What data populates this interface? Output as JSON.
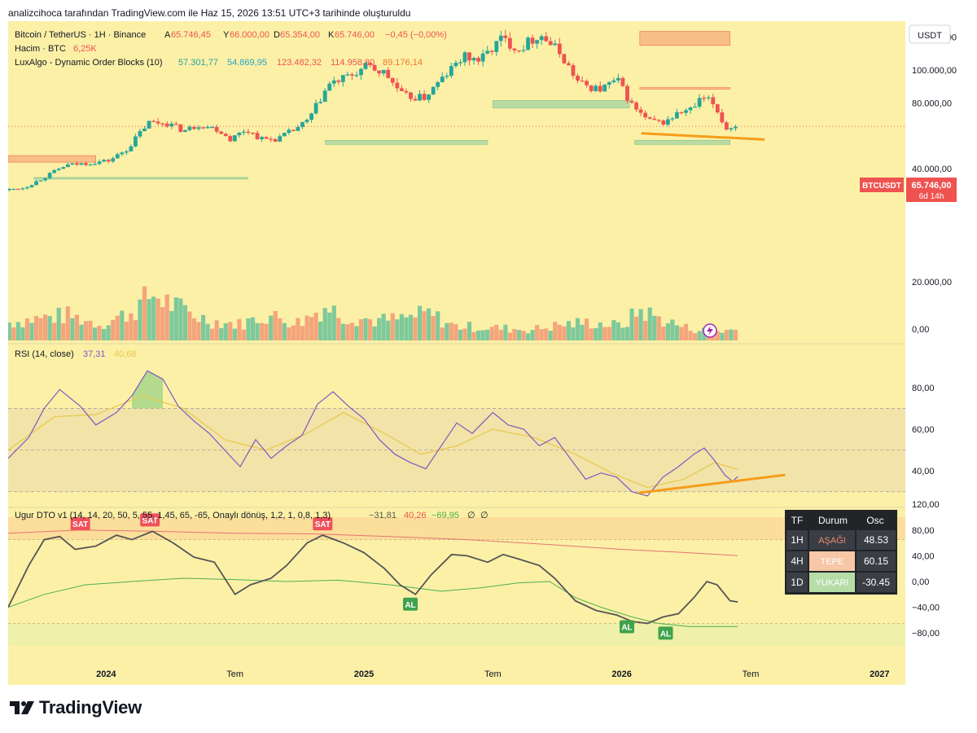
{
  "caption": "analizcihoca tarafından TradingView.com ile Haz 15, 2026 13:51 UTC+3 tarihinde oluşturuldu",
  "brand": "TradingView",
  "colors": {
    "bg": "#fcf0a7",
    "up": "#26a69a",
    "down": "#ef5350",
    "vol_up": "#7fc99a",
    "vol_down": "#f4a57c",
    "rsi": "#7e57c2",
    "rsi_ma": "#e8c84a",
    "trend": "#f59d1c",
    "dto_fast": "#555555",
    "dto_slow": "#4caf50"
  },
  "chart_data": [
    {
      "type": "candlestick",
      "title": "Bitcoin / TetherUS · 1H · Binance",
      "ohlc": {
        "A": "65.746,45",
        "Y": "66.000,00",
        "D": "65.354,00",
        "K": "65.746,00"
      },
      "change": "−0,45 (−0,00%)",
      "volume_label": "Hacim · BTC",
      "volume_value": "6,25K",
      "indicator_label": "LuxAlgo - Dynamic Order Blocks (10)",
      "indicator_values": [
        "57.301,77",
        "54.869,95",
        "123.482,32",
        "114.958,80",
        "89.176,14"
      ],
      "currency": "USDT",
      "symbol_tag": "BTCUSDT",
      "last_price": "65.746,00",
      "countdown": "6d 14h",
      "last_value": 65746,
      "y_ticks": [
        120000,
        100000,
        80000,
        40000,
        20000,
        0
      ],
      "y_tick_labels": [
        "120.000,00",
        "100.000,00",
        "80.000,00",
        "40.000,00",
        "20.000,00",
        "0,00"
      ],
      "x_ticks": [
        {
          "t": 2024.0,
          "label": "2024"
        },
        {
          "t": 2024.5,
          "label": "Tem"
        },
        {
          "t": 2025.0,
          "label": "2025"
        },
        {
          "t": 2025.5,
          "label": "Tem"
        },
        {
          "t": 2026.0,
          "label": "2026"
        },
        {
          "t": 2026.5,
          "label": "Tem"
        },
        {
          "t": 2027.0,
          "label": "2027"
        }
      ],
      "x_range": [
        2023.62,
        2027.1
      ],
      "price_path": [
        [
          2023.62,
          27000
        ],
        [
          2023.7,
          28500
        ],
        [
          2023.78,
          35000
        ],
        [
          2023.86,
          42000
        ],
        [
          2023.95,
          43500
        ],
        [
          2024.03,
          45000
        ],
        [
          2024.1,
          52000
        ],
        [
          2024.18,
          68000
        ],
        [
          2024.25,
          68000
        ],
        [
          2024.32,
          63000
        ],
        [
          2024.38,
          67000
        ],
        [
          2024.45,
          64000
        ],
        [
          2024.5,
          58000
        ],
        [
          2024.56,
          64000
        ],
        [
          2024.62,
          58000
        ],
        [
          2024.68,
          58000
        ],
        [
          2024.74,
          63000
        ],
        [
          2024.8,
          69000
        ],
        [
          2024.88,
          91000
        ],
        [
          2024.96,
          96000
        ],
        [
          2025.03,
          102000
        ],
        [
          2025.1,
          98000
        ],
        [
          2025.17,
          84000
        ],
        [
          2025.25,
          83000
        ],
        [
          2025.33,
          96000
        ],
        [
          2025.4,
          108000
        ],
        [
          2025.47,
          106000
        ],
        [
          2025.55,
          119000
        ],
        [
          2025.62,
          113000
        ],
        [
          2025.7,
          122000
        ],
        [
          2025.78,
          110000
        ],
        [
          2025.85,
          92000
        ],
        [
          2025.93,
          88000
        ],
        [
          2026.0,
          94000
        ],
        [
          2026.06,
          78000
        ],
        [
          2026.12,
          69000
        ],
        [
          2026.18,
          68000
        ],
        [
          2026.24,
          74000
        ],
        [
          2026.29,
          76000
        ],
        [
          2026.33,
          83000
        ],
        [
          2026.37,
          80000
        ],
        [
          2026.4,
          72000
        ],
        [
          2026.42,
          64000
        ],
        [
          2026.45,
          65746
        ]
      ],
      "volume_path": [
        [
          2023.62,
          10000
        ],
        [
          2023.72,
          12000
        ],
        [
          2023.85,
          14000
        ],
        [
          2023.98,
          9000
        ],
        [
          2024.1,
          16000
        ],
        [
          2024.18,
          26000
        ],
        [
          2024.28,
          18000
        ],
        [
          2024.4,
          11000
        ],
        [
          2024.52,
          9000
        ],
        [
          2024.62,
          14000
        ],
        [
          2024.75,
          10000
        ],
        [
          2024.85,
          19000
        ],
        [
          2024.92,
          14000
        ],
        [
          2025.05,
          11000
        ],
        [
          2025.15,
          12000
        ],
        [
          2025.25,
          15000
        ],
        [
          2025.35,
          8000
        ],
        [
          2025.5,
          7000
        ],
        [
          2025.65,
          6000
        ],
        [
          2025.78,
          9000
        ],
        [
          2025.88,
          10000
        ],
        [
          2026.0,
          8000
        ],
        [
          2026.07,
          17000
        ],
        [
          2026.15,
          12000
        ],
        [
          2026.25,
          7000
        ],
        [
          2026.35,
          5000
        ],
        [
          2026.45,
          6000
        ]
      ],
      "order_blocks": [
        {
          "t1": 2023.62,
          "t2": 2023.96,
          "y1": 44000,
          "y2": 48000,
          "kind": "bearish"
        },
        {
          "t1": 2023.72,
          "t2": 2024.55,
          "y1": 34200,
          "y2": 34700,
          "kind": "bullish"
        },
        {
          "t1": 2024.85,
          "t2": 2025.48,
          "y1": 54800,
          "y2": 57300,
          "kind": "bullish"
        },
        {
          "t1": 2025.5,
          "t2": 2026.03,
          "y1": 77000,
          "y2": 81500,
          "kind": "bullish"
        },
        {
          "t1": 2026.05,
          "t2": 2026.42,
          "y1": 54800,
          "y2": 57300,
          "kind": "bullish"
        },
        {
          "t1": 2026.07,
          "t2": 2026.42,
          "y1": 114958,
          "y2": 123482,
          "kind": "bearish"
        },
        {
          "t1": 2026.07,
          "t2": 2026.42,
          "y1": 89000,
          "y2": 89350,
          "kind": "bearish"
        }
      ],
      "trendline": [
        [
          2026.08,
          61500
        ],
        [
          2026.55,
          57800
        ]
      ]
    },
    {
      "type": "line",
      "title": "RSI (14, close)",
      "values_text": [
        "37,31",
        "40,68"
      ],
      "y_ticks": [
        80,
        60,
        40
      ],
      "y_tick_labels": [
        "80,00",
        "60,00",
        "40,00"
      ],
      "band": [
        30,
        70
      ],
      "rsi": [
        [
          2023.62,
          46
        ],
        [
          2023.7,
          56
        ],
        [
          2023.76,
          70
        ],
        [
          2023.82,
          79
        ],
        [
          2023.9,
          71
        ],
        [
          2023.96,
          62
        ],
        [
          2024.04,
          68
        ],
        [
          2024.1,
          76
        ],
        [
          2024.16,
          88
        ],
        [
          2024.22,
          84
        ],
        [
          2024.28,
          71
        ],
        [
          2024.34,
          64
        ],
        [
          2024.4,
          58
        ],
        [
          2024.46,
          50
        ],
        [
          2024.52,
          42
        ],
        [
          2024.58,
          55
        ],
        [
          2024.64,
          46
        ],
        [
          2024.7,
          52
        ],
        [
          2024.76,
          57
        ],
        [
          2024.82,
          72
        ],
        [
          2024.88,
          78
        ],
        [
          2024.94,
          71
        ],
        [
          2025.0,
          65
        ],
        [
          2025.06,
          55
        ],
        [
          2025.12,
          48
        ],
        [
          2025.18,
          44
        ],
        [
          2025.24,
          41
        ],
        [
          2025.3,
          52
        ],
        [
          2025.36,
          63
        ],
        [
          2025.42,
          58
        ],
        [
          2025.5,
          68
        ],
        [
          2025.56,
          62
        ],
        [
          2025.62,
          60
        ],
        [
          2025.68,
          52
        ],
        [
          2025.74,
          56
        ],
        [
          2025.8,
          46
        ],
        [
          2025.86,
          36
        ],
        [
          2025.92,
          39
        ],
        [
          2025.98,
          37
        ],
        [
          2026.04,
          30
        ],
        [
          2026.1,
          28
        ],
        [
          2026.16,
          37
        ],
        [
          2026.22,
          42
        ],
        [
          2026.28,
          48
        ],
        [
          2026.32,
          51
        ],
        [
          2026.36,
          45
        ],
        [
          2026.4,
          38
        ],
        [
          2026.43,
          35
        ],
        [
          2026.45,
          37.31
        ]
      ],
      "rsi_ma": [
        [
          2023.62,
          50
        ],
        [
          2023.8,
          66
        ],
        [
          2023.96,
          67
        ],
        [
          2024.14,
          76
        ],
        [
          2024.3,
          70
        ],
        [
          2024.46,
          55
        ],
        [
          2024.62,
          50
        ],
        [
          2024.78,
          58
        ],
        [
          2024.92,
          68
        ],
        [
          2025.08,
          58
        ],
        [
          2025.22,
          48
        ],
        [
          2025.36,
          52
        ],
        [
          2025.5,
          60
        ],
        [
          2025.66,
          56
        ],
        [
          2025.82,
          48
        ],
        [
          2025.96,
          39
        ],
        [
          2026.1,
          32
        ],
        [
          2026.24,
          36
        ],
        [
          2026.36,
          44
        ],
        [
          2026.45,
          40.68
        ]
      ],
      "trendline": [
        [
          2026.07,
          29.5
        ],
        [
          2026.63,
          38
        ]
      ]
    },
    {
      "type": "line",
      "title": "Ugur DTO v1 (14, 14, 20, 50, 5, 55, 1,45, 65, -65, Onaylı dönüş, 1,2, 1, 0,8, 1,3)",
      "values_text": [
        "−31,81",
        "40,26",
        "−69,95",
        "∅",
        "∅"
      ],
      "y_ticks": [
        120,
        80,
        40,
        0,
        -40,
        -80
      ],
      "y_tick_labels": [
        "120,00",
        "80,00",
        "40,00",
        "0,00",
        "−40,00",
        "−80,00"
      ],
      "upper_zone": [
        65,
        100
      ],
      "lower_zone": [
        -100,
        -65
      ],
      "fast": [
        [
          2023.62,
          -40
        ],
        [
          2023.7,
          25
        ],
        [
          2023.76,
          65
        ],
        [
          2023.82,
          70
        ],
        [
          2023.88,
          50
        ],
        [
          2023.96,
          55
        ],
        [
          2024.04,
          72
        ],
        [
          2024.1,
          65
        ],
        [
          2024.18,
          78
        ],
        [
          2024.26,
          60
        ],
        [
          2024.34,
          38
        ],
        [
          2024.42,
          30
        ],
        [
          2024.5,
          -20
        ],
        [
          2024.56,
          -5
        ],
        [
          2024.64,
          5
        ],
        [
          2024.7,
          25
        ],
        [
          2024.78,
          60
        ],
        [
          2024.84,
          72
        ],
        [
          2024.92,
          60
        ],
        [
          2025.0,
          45
        ],
        [
          2025.08,
          20
        ],
        [
          2025.14,
          -5
        ],
        [
          2025.2,
          -20
        ],
        [
          2025.26,
          10
        ],
        [
          2025.34,
          42
        ],
        [
          2025.4,
          40
        ],
        [
          2025.48,
          30
        ],
        [
          2025.54,
          42
        ],
        [
          2025.6,
          35
        ],
        [
          2025.68,
          25
        ],
        [
          2025.74,
          5
        ],
        [
          2025.82,
          -30
        ],
        [
          2025.9,
          -45
        ],
        [
          2025.98,
          -52
        ],
        [
          2026.04,
          -62
        ],
        [
          2026.1,
          -65
        ],
        [
          2026.16,
          -55
        ],
        [
          2026.22,
          -50
        ],
        [
          2026.28,
          -25
        ],
        [
          2026.33,
          0
        ],
        [
          2026.37,
          -5
        ],
        [
          2026.42,
          -30
        ],
        [
          2026.45,
          -31.81
        ]
      ],
      "slow": [
        [
          2023.62,
          -40
        ],
        [
          2023.76,
          -20
        ],
        [
          2023.92,
          -5
        ],
        [
          2024.1,
          0
        ],
        [
          2024.3,
          5
        ],
        [
          2024.5,
          3
        ],
        [
          2024.7,
          0
        ],
        [
          2024.9,
          2
        ],
        [
          2025.1,
          -5
        ],
        [
          2025.3,
          -15
        ],
        [
          2025.45,
          -10
        ],
        [
          2025.6,
          -2
        ],
        [
          2025.72,
          0
        ],
        [
          2025.82,
          -25
        ],
        [
          2025.92,
          -40
        ],
        [
          2026.04,
          -55
        ],
        [
          2026.14,
          -65
        ],
        [
          2026.26,
          -70
        ],
        [
          2026.45,
          -69.95
        ]
      ],
      "signal_line": [
        [
          2023.62,
          75
        ],
        [
          2023.9,
          80
        ],
        [
          2024.2,
          78
        ],
        [
          2024.5,
          75
        ],
        [
          2024.8,
          74
        ],
        [
          2025.1,
          70
        ],
        [
          2025.4,
          65
        ],
        [
          2025.7,
          58
        ],
        [
          2026.0,
          50
        ],
        [
          2026.25,
          45
        ],
        [
          2026.45,
          40.26
        ]
      ],
      "signals": [
        {
          "t": 2023.9,
          "v": 72,
          "label": "SAT",
          "kind": "sell"
        },
        {
          "t": 2024.17,
          "v": 78,
          "label": "SAT",
          "kind": "sell"
        },
        {
          "t": 2024.84,
          "v": 72,
          "label": "SAT",
          "kind": "sell"
        },
        {
          "t": 2025.18,
          "v": -20,
          "label": "AL",
          "kind": "buy"
        },
        {
          "t": 2026.02,
          "v": -55,
          "label": "AL",
          "kind": "buy"
        },
        {
          "t": 2026.17,
          "v": -65,
          "label": "AL",
          "kind": "buy"
        }
      ]
    },
    {
      "type": "table",
      "headers": [
        "TF",
        "Durum",
        "Osc"
      ],
      "rows": [
        {
          "tf": "1H",
          "state": "AŞAĞI",
          "osc": "48.53",
          "color": "#ef8c6f"
        },
        {
          "tf": "4H",
          "state": "TEPE",
          "osc": "60.15",
          "color": "#f7a99a"
        },
        {
          "tf": "1D",
          "state": "YUKARI",
          "osc": "-30.45",
          "color": "#a6d49a"
        }
      ]
    }
  ]
}
